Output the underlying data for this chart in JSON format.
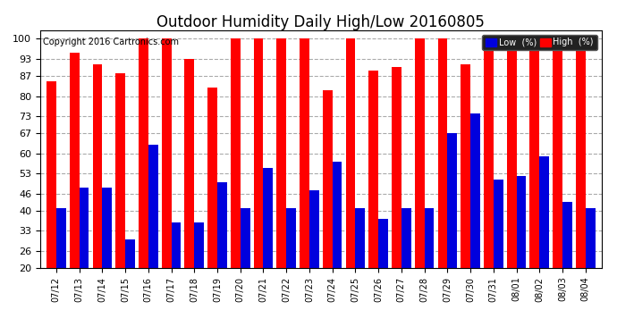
{
  "title": "Outdoor Humidity Daily High/Low 20160805",
  "copyright": "Copyright 2016 Cartronics.com",
  "dates": [
    "07/12",
    "07/13",
    "07/14",
    "07/15",
    "07/16",
    "07/17",
    "07/18",
    "07/19",
    "07/20",
    "07/21",
    "07/22",
    "07/23",
    "07/24",
    "07/25",
    "07/26",
    "07/27",
    "07/28",
    "07/29",
    "07/30",
    "07/31",
    "08/01",
    "08/02",
    "08/03",
    "08/04"
  ],
  "high": [
    85,
    95,
    91,
    88,
    100,
    100,
    93,
    83,
    100,
    100,
    100,
    100,
    82,
    100,
    89,
    90,
    100,
    100,
    91,
    100,
    100,
    100,
    100,
    96
  ],
  "low": [
    41,
    48,
    48,
    30,
    63,
    36,
    36,
    50,
    41,
    55,
    41,
    47,
    57,
    41,
    37,
    41,
    41,
    67,
    74,
    51,
    52,
    59,
    43,
    41
  ],
  "high_color": "#ff0000",
  "low_color": "#0000dd",
  "bg_color": "#ffffff",
  "grid_color": "#aaaaaa",
  "ylabel_color": "#000000",
  "title_fontsize": 12,
  "copyright_fontsize": 7,
  "yticks": [
    20,
    26,
    33,
    40,
    46,
    53,
    60,
    67,
    73,
    80,
    87,
    93,
    100
  ],
  "ylim": [
    20,
    103
  ],
  "bar_width": 0.42
}
